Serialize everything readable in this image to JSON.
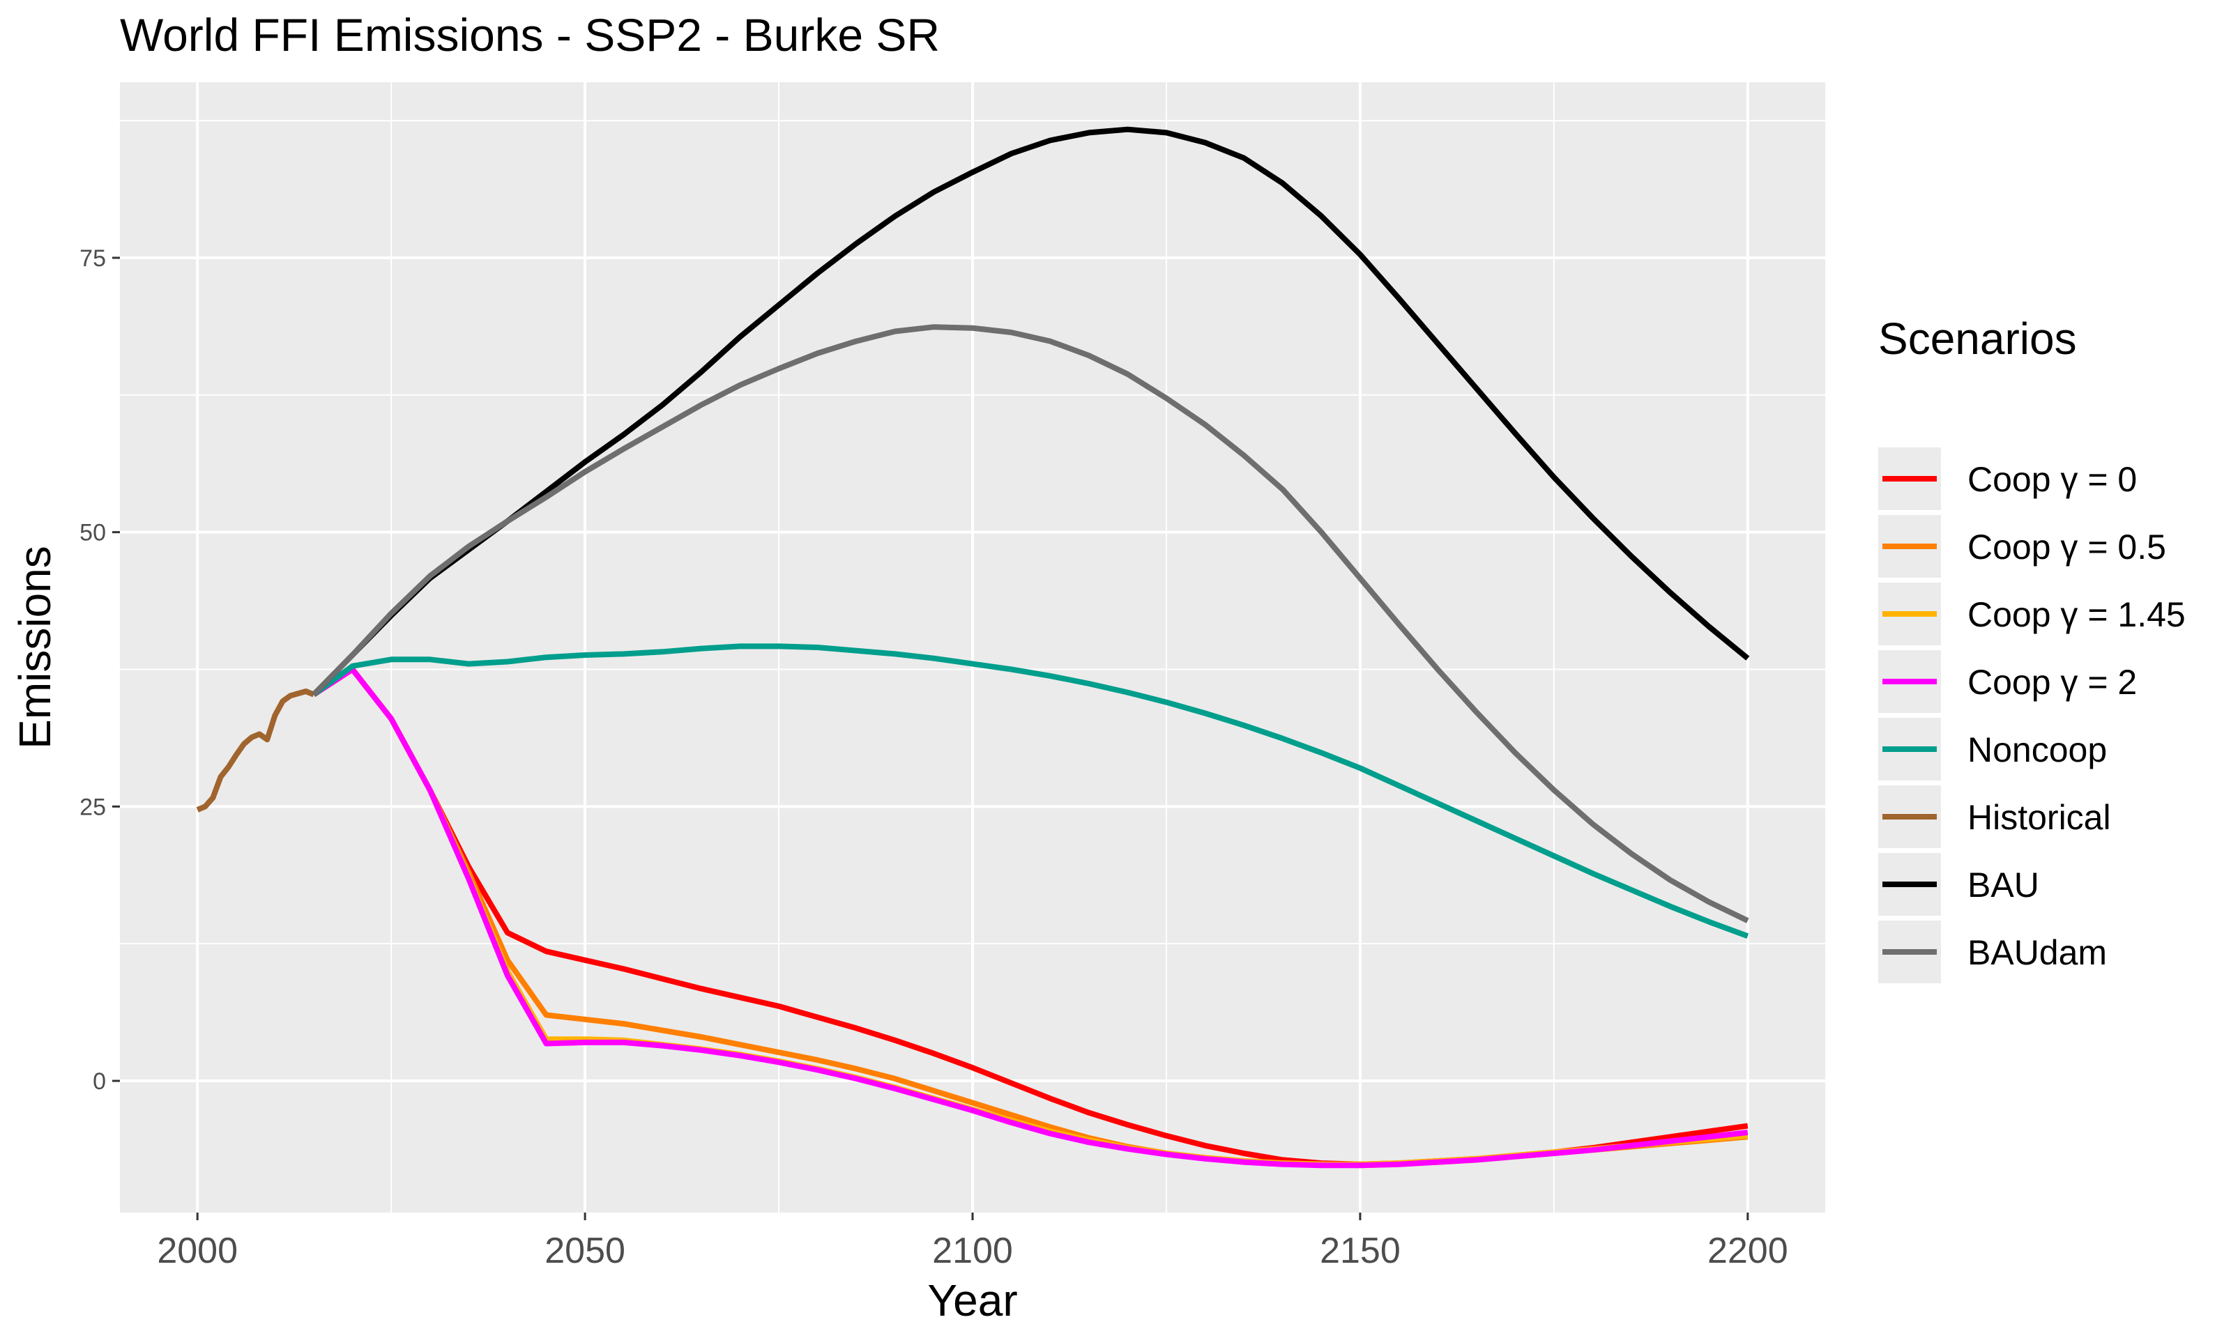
{
  "chart_data": {
    "type": "line",
    "title": "World FFI Emissions - SSP2 - Burke SR",
    "xlabel": "Year",
    "ylabel": "Emissions",
    "xlim": [
      1990,
      2210
    ],
    "ylim": [
      -12,
      91
    ],
    "x_ticks": [
      2000,
      2050,
      2100,
      2150,
      2200
    ],
    "y_ticks": [
      0,
      25,
      50,
      75
    ],
    "grid": true,
    "background": "#ebebeb",
    "legend": {
      "title": "Scenarios",
      "position": "right"
    },
    "series": [
      {
        "key": "coop-0",
        "name": "Coop γ = 0",
        "color": "#ff0000",
        "x": [
          2015,
          2020,
          2025,
          2030,
          2035,
          2040,
          2045,
          2050,
          2055,
          2060,
          2065,
          2070,
          2075,
          2080,
          2085,
          2090,
          2095,
          2100,
          2105,
          2110,
          2115,
          2120,
          2125,
          2130,
          2135,
          2140,
          2145,
          2150,
          2155,
          2160,
          2165,
          2170,
          2175,
          2180,
          2185,
          2190,
          2195,
          2200
        ],
        "values": [
          35.2,
          37.5,
          33.0,
          26.5,
          19.5,
          13.5,
          11.8,
          11.0,
          10.2,
          9.3,
          8.4,
          7.6,
          6.8,
          5.8,
          4.8,
          3.7,
          2.5,
          1.2,
          -0.2,
          -1.6,
          -2.9,
          -4.0,
          -5.0,
          -5.9,
          -6.6,
          -7.2,
          -7.5,
          -7.6,
          -7.5,
          -7.3,
          -7.1,
          -6.8,
          -6.5,
          -6.1,
          -5.6,
          -5.1,
          -4.6,
          -4.1
        ]
      },
      {
        "key": "coop-05",
        "name": "Coop γ = 0.5",
        "color": "#ff7f00",
        "x": [
          2015,
          2020,
          2025,
          2030,
          2035,
          2040,
          2045,
          2050,
          2055,
          2060,
          2065,
          2070,
          2075,
          2080,
          2085,
          2090,
          2095,
          2100,
          2105,
          2110,
          2115,
          2120,
          2125,
          2130,
          2135,
          2140,
          2145,
          2150,
          2155,
          2160,
          2165,
          2170,
          2175,
          2180,
          2185,
          2190,
          2195,
          2200
        ],
        "values": [
          35.2,
          37.5,
          33.0,
          26.5,
          19.0,
          11.0,
          6.0,
          5.6,
          5.2,
          4.6,
          4.0,
          3.3,
          2.6,
          1.9,
          1.1,
          0.2,
          -0.9,
          -2.0,
          -3.1,
          -4.2,
          -5.2,
          -6.0,
          -6.6,
          -7.0,
          -7.3,
          -7.5,
          -7.6,
          -7.7,
          -7.6,
          -7.4,
          -7.2,
          -6.9,
          -6.6,
          -6.3,
          -6.0,
          -5.7,
          -5.4,
          -5.1
        ]
      },
      {
        "key": "coop-145",
        "name": "Coop γ = 1.45",
        "color": "#ffb300",
        "x": [
          2015,
          2020,
          2025,
          2030,
          2035,
          2040,
          2045,
          2050,
          2055,
          2060,
          2065,
          2070,
          2075,
          2080,
          2085,
          2090,
          2095,
          2100,
          2105,
          2110,
          2115,
          2120,
          2125,
          2130,
          2135,
          2140,
          2145,
          2150,
          2155,
          2160,
          2165,
          2170,
          2175,
          2180,
          2185,
          2190,
          2195,
          2200
        ],
        "values": [
          35.2,
          37.5,
          33.0,
          26.5,
          18.6,
          10.0,
          3.8,
          3.8,
          3.7,
          3.3,
          2.9,
          2.4,
          1.8,
          1.1,
          0.3,
          -0.6,
          -1.6,
          -2.6,
          -3.6,
          -4.6,
          -5.4,
          -6.1,
          -6.6,
          -7.0,
          -7.3,
          -7.5,
          -7.6,
          -7.6,
          -7.5,
          -7.3,
          -7.1,
          -6.8,
          -6.5,
          -6.2,
          -5.9,
          -5.6,
          -5.3,
          -5.0
        ]
      },
      {
        "key": "coop-2",
        "name": "Coop γ = 2",
        "color": "#ff00ff",
        "x": [
          2015,
          2020,
          2025,
          2030,
          2035,
          2040,
          2045,
          2050,
          2055,
          2060,
          2065,
          2070,
          2075,
          2080,
          2085,
          2090,
          2095,
          2100,
          2105,
          2110,
          2115,
          2120,
          2125,
          2130,
          2135,
          2140,
          2145,
          2150,
          2155,
          2160,
          2165,
          2170,
          2175,
          2180,
          2185,
          2190,
          2195,
          2200
        ],
        "values": [
          35.2,
          37.5,
          33.0,
          26.5,
          18.4,
          9.6,
          3.4,
          3.5,
          3.5,
          3.2,
          2.8,
          2.3,
          1.7,
          1.0,
          0.2,
          -0.7,
          -1.7,
          -2.7,
          -3.8,
          -4.8,
          -5.6,
          -6.2,
          -6.7,
          -7.1,
          -7.4,
          -7.6,
          -7.7,
          -7.7,
          -7.6,
          -7.4,
          -7.2,
          -6.9,
          -6.6,
          -6.3,
          -5.9,
          -5.5,
          -5.1,
          -4.7
        ]
      },
      {
        "key": "noncoop",
        "name": "Noncoop",
        "color": "#009e8c",
        "x": [
          2015,
          2020,
          2025,
          2030,
          2035,
          2040,
          2045,
          2050,
          2055,
          2060,
          2065,
          2070,
          2075,
          2080,
          2085,
          2090,
          2095,
          2100,
          2105,
          2110,
          2115,
          2120,
          2125,
          2130,
          2135,
          2140,
          2145,
          2150,
          2155,
          2160,
          2165,
          2170,
          2175,
          2180,
          2185,
          2190,
          2195,
          2200
        ],
        "values": [
          35.2,
          37.8,
          38.4,
          38.4,
          38.0,
          38.2,
          38.6,
          38.8,
          38.9,
          39.1,
          39.4,
          39.6,
          39.6,
          39.5,
          39.2,
          38.9,
          38.5,
          38.0,
          37.5,
          36.9,
          36.2,
          35.4,
          34.5,
          33.5,
          32.4,
          31.2,
          29.9,
          28.5,
          26.9,
          25.3,
          23.7,
          22.1,
          20.5,
          18.9,
          17.4,
          15.9,
          14.5,
          13.2
        ]
      },
      {
        "key": "historical",
        "name": "Historical",
        "color": "#a0642d",
        "x": [
          2000,
          2001,
          2002,
          2003,
          2004,
          2005,
          2006,
          2007,
          2008,
          2009,
          2010,
          2011,
          2012,
          2013,
          2014,
          2015
        ],
        "values": [
          24.7,
          25.0,
          25.8,
          27.7,
          28.6,
          29.7,
          30.7,
          31.3,
          31.6,
          31.1,
          33.3,
          34.6,
          35.1,
          35.3,
          35.5,
          35.2
        ]
      },
      {
        "key": "bau",
        "name": "BAU",
        "color": "#000000",
        "x": [
          2015,
          2020,
          2025,
          2030,
          2035,
          2040,
          2045,
          2050,
          2055,
          2060,
          2065,
          2070,
          2075,
          2080,
          2085,
          2090,
          2095,
          2100,
          2105,
          2110,
          2115,
          2120,
          2125,
          2130,
          2135,
          2140,
          2145,
          2150,
          2155,
          2160,
          2165,
          2170,
          2175,
          2180,
          2185,
          2190,
          2195,
          2200
        ],
        "values": [
          35.2,
          38.8,
          42.4,
          45.8,
          48.4,
          51.0,
          53.7,
          56.4,
          58.9,
          61.6,
          64.6,
          67.8,
          70.7,
          73.6,
          76.3,
          78.8,
          81.0,
          82.8,
          84.5,
          85.7,
          86.4,
          86.7,
          86.4,
          85.5,
          84.1,
          81.8,
          78.8,
          75.3,
          71.3,
          67.2,
          63.1,
          59.0,
          55.0,
          51.3,
          47.8,
          44.5,
          41.4,
          38.5
        ]
      },
      {
        "key": "baudam",
        "name": "BAUdam",
        "color": "#6e6e6e",
        "x": [
          2015,
          2020,
          2025,
          2030,
          2035,
          2040,
          2045,
          2050,
          2055,
          2060,
          2065,
          2070,
          2075,
          2080,
          2085,
          2090,
          2095,
          2100,
          2105,
          2110,
          2115,
          2120,
          2125,
          2130,
          2135,
          2140,
          2145,
          2150,
          2155,
          2160,
          2165,
          2170,
          2175,
          2180,
          2185,
          2190,
          2195,
          2200
        ],
        "values": [
          35.2,
          38.8,
          42.6,
          46.0,
          48.7,
          51.0,
          53.2,
          55.5,
          57.6,
          59.6,
          61.6,
          63.4,
          64.9,
          66.3,
          67.4,
          68.3,
          68.7,
          68.6,
          68.2,
          67.4,
          66.1,
          64.4,
          62.2,
          59.8,
          57.0,
          53.9,
          50.0,
          45.8,
          41.6,
          37.5,
          33.6,
          29.9,
          26.5,
          23.4,
          20.7,
          18.3,
          16.3,
          14.6
        ]
      }
    ]
  }
}
